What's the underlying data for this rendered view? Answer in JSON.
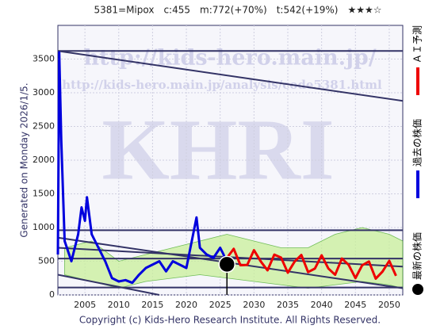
{
  "chart_data": {
    "type": "line",
    "title": "5381=Mipox　c:455　m:772(+70%)　t:542(+19%)　★★★☆",
    "side_text": "Generated on Monday 2026/1/5.",
    "footer": "Copyright (c) Kids-Hero Research Institute. All Rights Reserved.",
    "watermarks": [
      "http://kids-hero.main.jp/",
      "http://kids-hero.main.jp/analysis/code5381.html",
      "KHRI"
    ],
    "xlim": [
      2001,
      2052
    ],
    "xticks": [
      2005,
      2010,
      2015,
      2020,
      2025,
      2030,
      2035,
      2040,
      2045,
      2050
    ],
    "ylim": [
      0,
      4000
    ],
    "yticks": [
      0,
      500,
      1000,
      1500,
      2000,
      2500,
      3000,
      3500
    ],
    "grid": true,
    "band": {
      "color": "#c9f09a",
      "x": [
        2002,
        2006,
        2010,
        2014,
        2018,
        2022,
        2026,
        2030,
        2034,
        2038,
        2042,
        2046,
        2050,
        2052
      ],
      "upper": [
        700,
        800,
        500,
        600,
        700,
        800,
        900,
        800,
        700,
        700,
        900,
        1000,
        900,
        800
      ],
      "lower": [
        300,
        200,
        100,
        200,
        250,
        300,
        250,
        200,
        150,
        100,
        150,
        200,
        150,
        100
      ]
    },
    "trend_lines": [
      {
        "color": "#333366",
        "x": [
          2001,
          2052
        ],
        "values": [
          3620,
          3620
        ]
      },
      {
        "color": "#333366",
        "x": [
          2001,
          2052
        ],
        "values": [
          3620,
          2880
        ]
      },
      {
        "color": "#333366",
        "x": [
          2001,
          2052
        ],
        "values": [
          960,
          960
        ]
      },
      {
        "color": "#333366",
        "x": [
          2001,
          2052
        ],
        "values": [
          540,
          540
        ]
      },
      {
        "color": "#333366",
        "x": [
          2001,
          2052
        ],
        "values": [
          110,
          110
        ]
      },
      {
        "color": "#333366",
        "x": [
          2001,
          2052
        ],
        "values": [
          850,
          100
        ]
      },
      {
        "color": "#333366",
        "x": [
          2001,
          2052
        ],
        "values": [
          700,
          420
        ]
      },
      {
        "color": "#333366",
        "x": [
          2001,
          2016
        ],
        "values": [
          300,
          0
        ]
      }
    ],
    "series": [
      {
        "name": "ＡＩ予測",
        "color": "#ee0000",
        "x": [
          2026,
          2027,
          2028,
          2029,
          2030,
          2031,
          2032,
          2033,
          2034,
          2035,
          2036,
          2037,
          2038,
          2039,
          2040,
          2041,
          2042,
          2043,
          2044,
          2045,
          2046,
          2047,
          2048,
          2049,
          2050,
          2051
        ],
        "values": [
          550,
          684,
          441,
          445,
          664,
          498,
          365,
          598,
          555,
          330,
          493,
          593,
          339,
          391,
          588,
          392,
          299,
          540,
          446,
          250,
          441,
          496,
          242,
          346,
          506,
          284
        ]
      },
      {
        "name": "過去の株価",
        "color": "#0000dd",
        "x": [
          2001,
          2001.2,
          2001.5,
          2002,
          2003,
          2004,
          2004.5,
          2005,
          2005.3,
          2006,
          2007,
          2008,
          2009,
          2010,
          2011,
          2012,
          2013,
          2014,
          2015,
          2016,
          2017,
          2018,
          2019,
          2020,
          2021,
          2021.5,
          2022,
          2023,
          2024,
          2025,
          2025.5,
          2026
        ],
        "values": [
          600,
          3600,
          2300,
          800,
          500,
          900,
          1300,
          1100,
          1450,
          900,
          700,
          500,
          250,
          200,
          220,
          180,
          300,
          400,
          450,
          500,
          350,
          500,
          450,
          400,
          900,
          1150,
          700,
          600,
          550,
          700,
          600,
          455
        ]
      },
      {
        "name": "最新の株価",
        "color": "#000000",
        "marker": "dot",
        "x": [
          2026
        ],
        "values": [
          455
        ]
      }
    ]
  }
}
